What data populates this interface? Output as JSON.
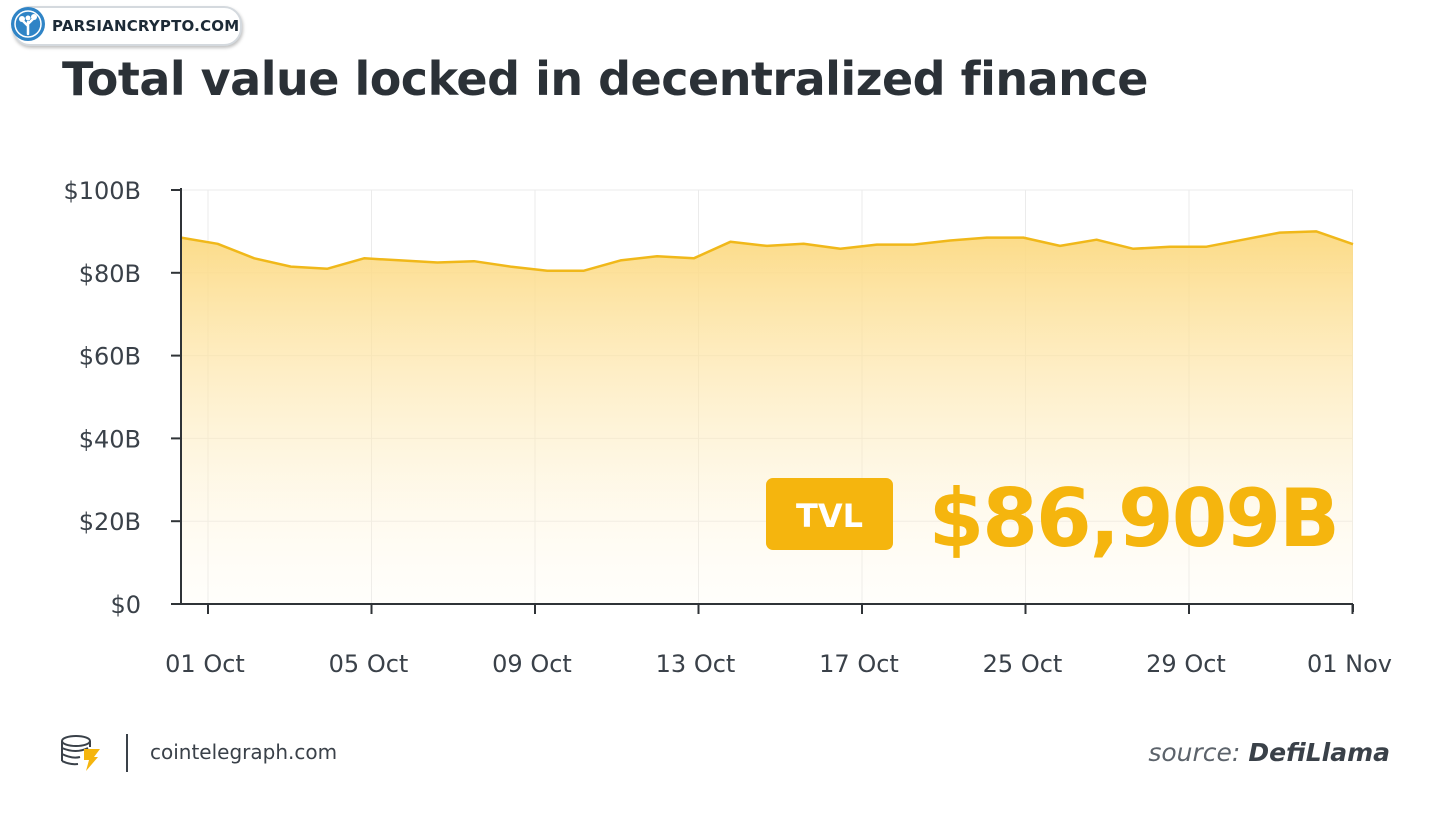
{
  "watermark": {
    "text": "PARSIANCRYPTO.COM"
  },
  "header": {
    "title": "Total value locked in decentralized finance"
  },
  "footer": {
    "brand": "cointelegraph.com",
    "source_prefix": "source:",
    "source_name": "DefiLlama"
  },
  "colors": {
    "line": "#f0b81a",
    "fill_top": "#fcd980",
    "badge": "#f5b50e",
    "value_text": "#f5b50e",
    "axis": "#2f3337",
    "grid": "#ebebeb",
    "text": "#3a4149"
  },
  "chart_data": {
    "type": "area",
    "title": "Total value locked in decentralized finance",
    "xlabel": "",
    "ylabel": "",
    "ylim": [
      0,
      100
    ],
    "y_unit": "$B",
    "y_ticks": [
      "$0",
      "$20B",
      "$40B",
      "$60B",
      "$80B",
      "$100B"
    ],
    "x_ticks": [
      "01 Oct",
      "05 Oct",
      "09 Oct",
      "13 Oct",
      "17 Oct",
      "25 Oct",
      "29 Oct",
      "01 Nov"
    ],
    "grid": true,
    "series": [
      {
        "values": [
          88.5,
          87.0,
          83.5,
          81.5,
          81.0,
          83.5,
          83.0,
          82.5,
          82.8,
          81.5,
          80.5,
          80.5,
          83.0,
          84.0,
          83.5,
          87.5,
          86.5,
          87.0,
          85.8,
          86.8,
          86.8,
          87.8,
          88.5,
          88.5,
          86.5,
          88.0,
          85.8,
          86.3,
          86.3,
          88.0,
          89.7,
          90.0,
          86.9
        ]
      }
    ],
    "annotation": {
      "badge": "TVL",
      "value": "$86,909B"
    }
  }
}
